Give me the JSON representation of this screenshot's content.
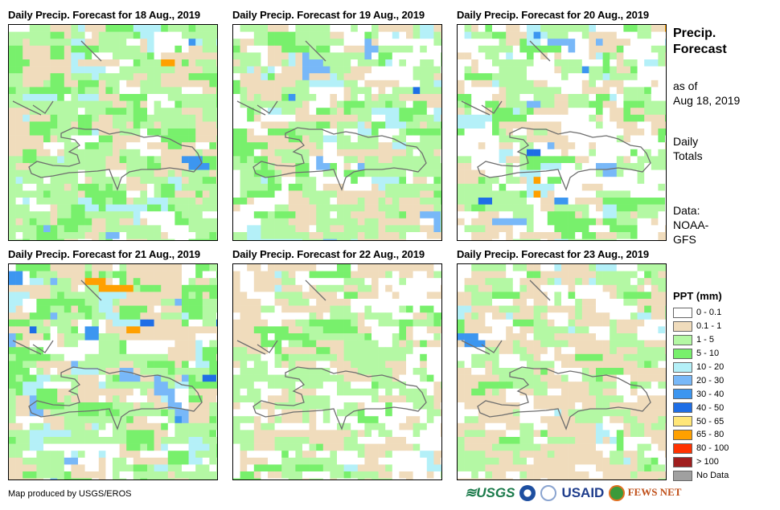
{
  "panels": [
    {
      "title": "Daily Precip. Forecast for 18 Aug., 2019"
    },
    {
      "title": "Daily Precip. Forecast for 19 Aug., 2019"
    },
    {
      "title": "Daily Precip. Forecast for 20 Aug., 2019"
    },
    {
      "title": "Daily Precip. Forecast for 21 Aug., 2019"
    },
    {
      "title": "Daily Precip. Forecast for 22 Aug., 2019"
    },
    {
      "title": "Daily Precip. Forecast for 23 Aug., 2019"
    }
  ],
  "side": {
    "title1": "Precip.",
    "title2": "Forecast",
    "asof1": "as of",
    "asof2": "Aug 18, 2019",
    "daily1": "Daily",
    "daily2": "Totals",
    "data1": "Data:",
    "data2": "NOAA-",
    "data3": "GFS"
  },
  "legend": {
    "title": "PPT (mm)",
    "items": [
      {
        "label": "0 - 0.1",
        "color": "#ffffff"
      },
      {
        "label": "0.1 - 1",
        "color": "#f0dcbc"
      },
      {
        "label": "1 - 5",
        "color": "#b4f8a4"
      },
      {
        "label": "5 - 10",
        "color": "#78f06c"
      },
      {
        "label": "10 - 20",
        "color": "#b4f0f8"
      },
      {
        "label": "20 - 30",
        "color": "#78b8f8"
      },
      {
        "label": "30 - 40",
        "color": "#3c96f0"
      },
      {
        "label": "40 - 50",
        "color": "#1e6ee6"
      },
      {
        "label": "50 - 65",
        "color": "#ffe678"
      },
      {
        "label": "65 - 80",
        "color": "#ffa000"
      },
      {
        "label": "80 - 100",
        "color": "#ff3200"
      },
      {
        "label": "> 100",
        "color": "#a01e1e"
      },
      {
        "label": "No Data",
        "color": "#a0a0a0"
      }
    ]
  },
  "credit": "Map produced by USGS/EROS",
  "logos": {
    "usgs": "USGS",
    "noaa": "NOAA",
    "usaid": "USAID",
    "fews": "FEWS NET"
  }
}
